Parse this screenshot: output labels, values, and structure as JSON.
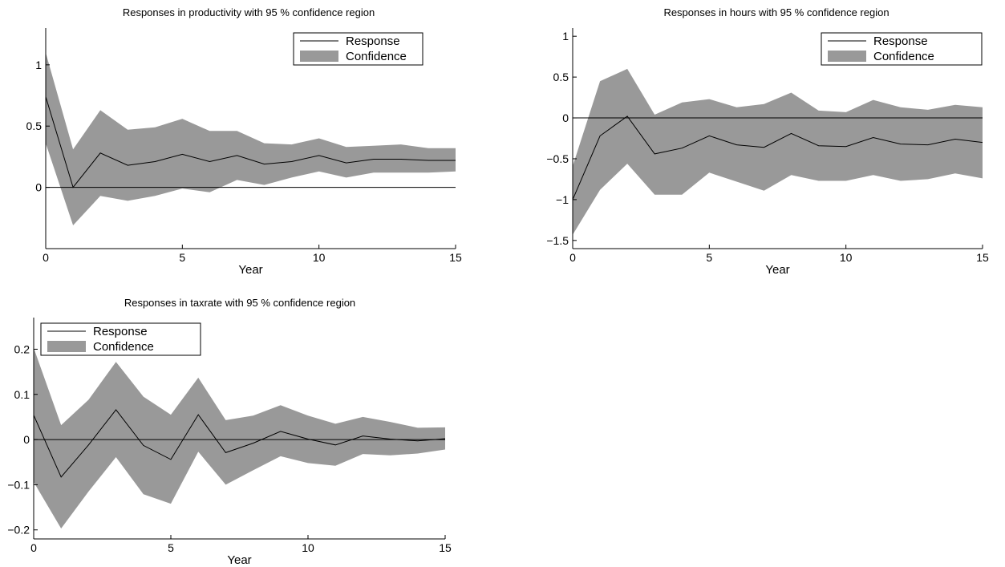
{
  "colors": {
    "band": "#999999",
    "line": "#000000",
    "background": "#ffffff"
  },
  "chart_data": [
    {
      "type": "line",
      "title": "Responses in productivity with 95 % confidence region",
      "xlabel": "Year",
      "ylabel": "",
      "xlim": [
        0,
        15
      ],
      "ylim": [
        -0.5,
        1.3
      ],
      "xticks": [
        "0",
        "5",
        "10",
        "15"
      ],
      "yticks": [
        "0",
        "0.5",
        "1"
      ],
      "grid": false,
      "legend_position": "top-right",
      "legend": [
        "Response",
        "Confidence"
      ],
      "x": [
        0,
        1,
        2,
        3,
        4,
        5,
        6,
        7,
        8,
        9,
        10,
        11,
        12,
        13,
        14,
        15
      ],
      "series": [
        {
          "name": "Response",
          "values": [
            0.74,
            0.0,
            0.28,
            0.18,
            0.21,
            0.27,
            0.21,
            0.26,
            0.19,
            0.21,
            0.26,
            0.2,
            0.23,
            0.23,
            0.22,
            0.22
          ]
        },
        {
          "name": "Confidence",
          "lower": [
            0.36,
            -0.31,
            -0.07,
            -0.11,
            -0.07,
            -0.01,
            -0.04,
            0.06,
            0.02,
            0.08,
            0.13,
            0.08,
            0.12,
            0.12,
            0.12,
            0.13
          ],
          "upper": [
            1.1,
            0.31,
            0.63,
            0.47,
            0.49,
            0.56,
            0.46,
            0.46,
            0.36,
            0.35,
            0.4,
            0.33,
            0.34,
            0.35,
            0.32,
            0.32
          ]
        }
      ]
    },
    {
      "type": "line",
      "title": "Responses in hours with 95 % confidence region",
      "xlabel": "Year",
      "ylabel": "",
      "xlim": [
        0,
        15
      ],
      "ylim": [
        -1.6,
        1.1
      ],
      "xticks": [
        "0",
        "5",
        "10",
        "15"
      ],
      "yticks": [
        "−1.5",
        "−1",
        "−0.5",
        "0",
        "0.5",
        "1"
      ],
      "grid": false,
      "legend_position": "top-right",
      "legend": [
        "Response",
        "Confidence"
      ],
      "x": [
        0,
        1,
        2,
        3,
        4,
        5,
        6,
        7,
        8,
        9,
        10,
        11,
        12,
        13,
        14,
        15
      ],
      "series": [
        {
          "name": "Response",
          "values": [
            -1.0,
            -0.22,
            0.02,
            -0.44,
            -0.37,
            -0.22,
            -0.33,
            -0.36,
            -0.19,
            -0.34,
            -0.35,
            -0.24,
            -0.32,
            -0.33,
            -0.26,
            -0.3
          ]
        },
        {
          "name": "Confidence",
          "lower": [
            -1.43,
            -0.88,
            -0.56,
            -0.94,
            -0.94,
            -0.67,
            -0.78,
            -0.89,
            -0.7,
            -0.77,
            -0.77,
            -0.7,
            -0.77,
            -0.75,
            -0.68,
            -0.74
          ],
          "upper": [
            -0.59,
            0.45,
            0.6,
            0.04,
            0.19,
            0.23,
            0.13,
            0.17,
            0.31,
            0.09,
            0.07,
            0.22,
            0.13,
            0.1,
            0.16,
            0.13
          ]
        }
      ]
    },
    {
      "type": "line",
      "title": "Responses in taxrate with 95 % confidence region",
      "xlabel": "Year",
      "ylabel": "",
      "xlim": [
        0,
        15
      ],
      "ylim": [
        -0.22,
        0.27
      ],
      "xticks": [
        "0",
        "5",
        "10",
        "15"
      ],
      "yticks": [
        "−0.2",
        "−0.1",
        "0",
        "0.1",
        "0.2"
      ],
      "grid": false,
      "legend_position": "top-left",
      "legend": [
        "Response",
        "Confidence"
      ],
      "x": [
        0,
        1,
        2,
        3,
        4,
        5,
        6,
        7,
        8,
        9,
        10,
        11,
        12,
        13,
        14,
        15
      ],
      "series": [
        {
          "name": "Response",
          "values": [
            0.054,
            -0.083,
            -0.012,
            0.066,
            -0.013,
            -0.044,
            0.055,
            -0.029,
            -0.008,
            0.018,
            0.001,
            -0.012,
            0.008,
            0.001,
            -0.003,
            0.002
          ]
        },
        {
          "name": "Confidence",
          "lower": [
            -0.094,
            -0.197,
            -0.115,
            -0.039,
            -0.121,
            -0.142,
            -0.027,
            -0.1,
            -0.068,
            -0.037,
            -0.052,
            -0.058,
            -0.032,
            -0.035,
            -0.031,
            -0.022
          ],
          "upper": [
            0.203,
            0.032,
            0.088,
            0.172,
            0.095,
            0.055,
            0.137,
            0.043,
            0.053,
            0.076,
            0.053,
            0.035,
            0.05,
            0.039,
            0.026,
            0.027
          ]
        }
      ]
    }
  ]
}
